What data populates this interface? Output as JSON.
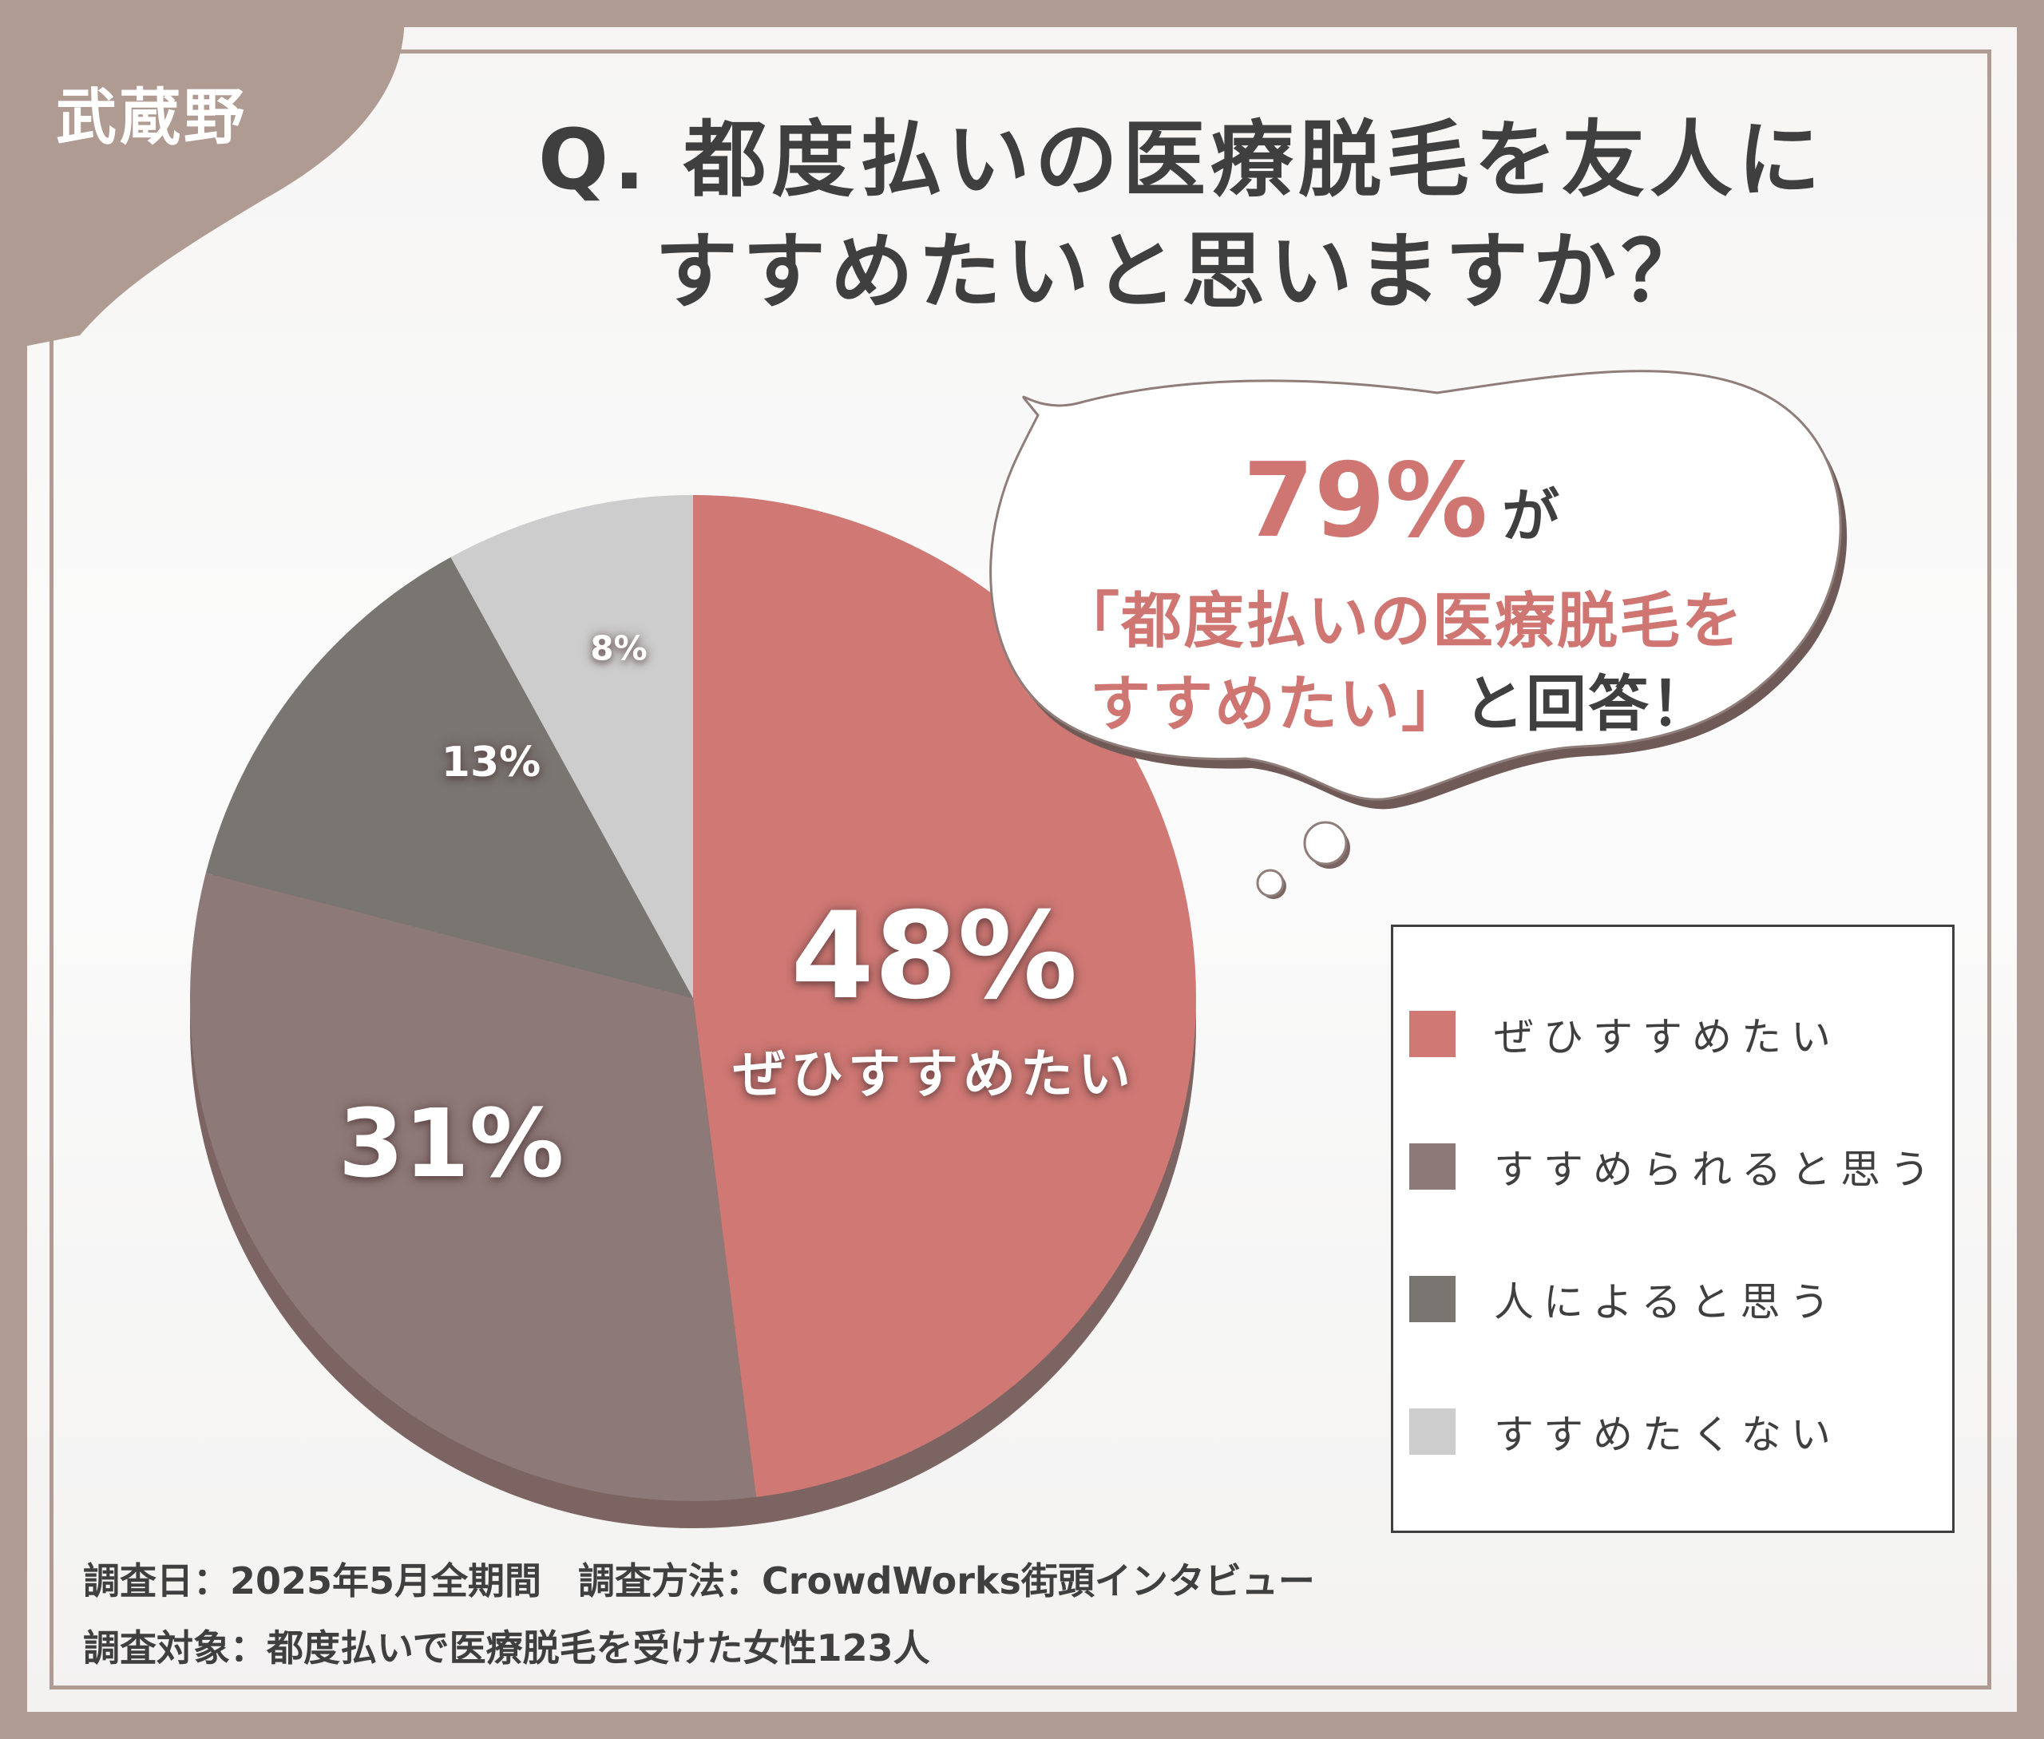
{
  "region_tag": "武蔵野",
  "title": {
    "line1": "Q. 都度払いの医療脱毛を友人に",
    "line2": "すすめたいと思いますか？"
  },
  "callout": {
    "percent": "79%",
    "particle": "が",
    "quote_line1": "「都度払いの医療脱毛を",
    "quote_line2": "すすめたい」",
    "tail": "と回答！"
  },
  "pie_labels": {
    "slice1_value": "48%",
    "slice1_name": "ぜひすすめたい",
    "slice2_value": "31%",
    "slice3_value": "13%",
    "slice4_value": "8%"
  },
  "legend": [
    {
      "label": "ぜひすすめたい",
      "color": "#cf7874"
    },
    {
      "label": "すすめられると思う",
      "color": "#8c7978"
    },
    {
      "label": "人によると思う",
      "color": "#797571"
    },
    {
      "label": "すすめたくない",
      "color": "#cdcdcd"
    }
  ],
  "footer": {
    "line1": "調査日：2025年5月全期間　調査方法：CrowdWorks街頭インタビュー",
    "line2": "調査対象：都度払いで医療脱毛を受けた女性123人"
  },
  "chart_data": {
    "type": "pie",
    "categories": [
      "ぜひすすめたい",
      "すすめられると思う",
      "人によると思う",
      "すすめたくない"
    ],
    "values": [
      48,
      31,
      13,
      8
    ],
    "colors": [
      "#cf7874",
      "#8c7978",
      "#797571",
      "#cdcdcd"
    ],
    "title": "Q. 都度払いの医療脱毛を友人にすすめたいと思いますか？",
    "legend_position": "right"
  }
}
